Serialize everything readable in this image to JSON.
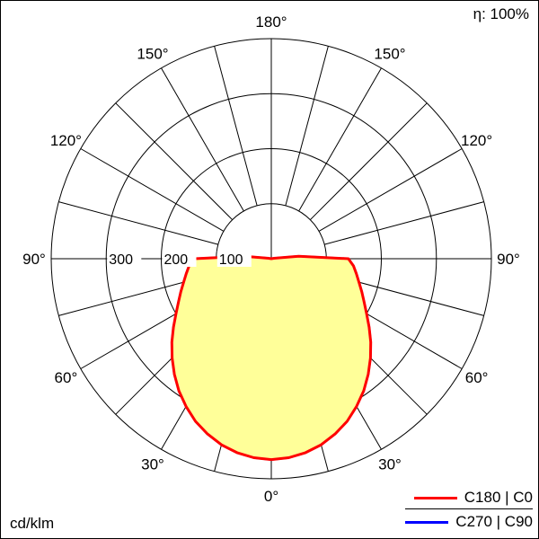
{
  "header": {
    "efficiency": "η: 100%"
  },
  "footer": {
    "unit": "cd/klm"
  },
  "chart_data": {
    "type": "polar",
    "subtype": "luminous-intensity-distribution",
    "unit": "cd/klm",
    "efficiency_label": "η: 100%",
    "angle_step_deg": 15,
    "angle_labels_deg": [
      0,
      30,
      60,
      90,
      120,
      150,
      180
    ],
    "radius_ticks": [
      100,
      200,
      300
    ],
    "r_max": 400,
    "grid_color": "#000000",
    "fill_color": "#ffff99",
    "legend_position": "bottom-right",
    "series": [
      {
        "name": "C180 | C0",
        "color": "#ff0000",
        "gamma_deg": [
          0,
          5,
          10,
          15,
          20,
          25,
          30,
          35,
          40,
          45,
          50,
          55,
          60,
          65,
          70,
          75,
          80,
          85,
          90,
          95,
          100,
          105,
          110,
          115,
          120,
          125,
          130,
          135,
          140,
          145,
          150,
          155,
          160,
          165,
          170,
          175,
          180
        ],
        "values": [
          365,
          363,
          358,
          350,
          339,
          326,
          310,
          293,
          274,
          255,
          236,
          217,
          200,
          186,
          175,
          165,
          157,
          150,
          140,
          50,
          5,
          0,
          0,
          0,
          0,
          0,
          0,
          0,
          0,
          0,
          0,
          0,
          0,
          0,
          0,
          0,
          0
        ]
      },
      {
        "name": "C270 | C90",
        "color": "#0000ff",
        "gamma_deg": [
          0,
          5,
          10,
          15,
          20,
          25,
          30,
          35,
          40,
          45,
          50,
          55,
          60,
          65,
          70,
          75,
          80,
          85,
          90,
          95,
          100,
          105,
          110,
          115,
          120,
          125,
          130,
          135,
          140,
          145,
          150,
          155,
          160,
          165,
          170,
          175,
          180
        ],
        "values": [
          365,
          363,
          358,
          350,
          339,
          326,
          310,
          293,
          274,
          255,
          236,
          217,
          200,
          186,
          175,
          165,
          157,
          150,
          140,
          50,
          5,
          0,
          0,
          0,
          0,
          0,
          0,
          0,
          0,
          0,
          0,
          0,
          0,
          0,
          0,
          0,
          0
        ]
      }
    ]
  }
}
